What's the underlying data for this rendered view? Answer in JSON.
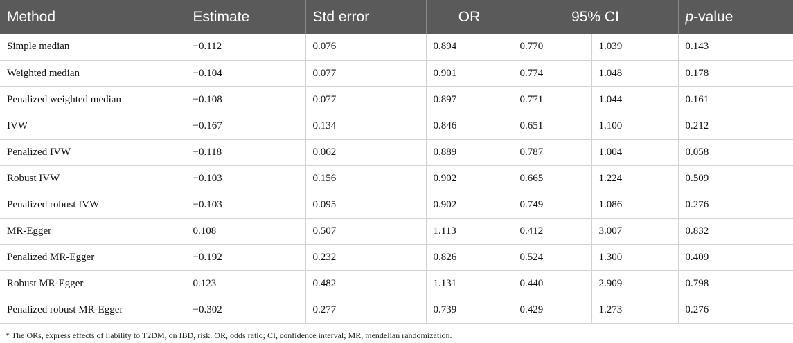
{
  "table": {
    "headers": {
      "method": "Method",
      "estimate": "Estimate",
      "std_error": "Std error",
      "or": "OR",
      "ci": "95% CI",
      "pvalue_italic": "p",
      "pvalue_rest": "-value"
    },
    "rows": [
      {
        "method": "Simple median",
        "estimate": "−0.112",
        "se": "0.076",
        "or": "0.894",
        "ci_low": "0.770",
        "ci_high": "1.039",
        "p": "0.143"
      },
      {
        "method": "Weighted median",
        "estimate": "−0.104",
        "se": "0.077",
        "or": "0.901",
        "ci_low": "0.774",
        "ci_high": "1.048",
        "p": "0.178"
      },
      {
        "method": "Penalized weighted median",
        "estimate": "−0.108",
        "se": "0.077",
        "or": "0.897",
        "ci_low": "0.771",
        "ci_high": "1.044",
        "p": "0.161"
      },
      {
        "method": "IVW",
        "estimate": "−0.167",
        "se": "0.134",
        "or": "0.846",
        "ci_low": "0.651",
        "ci_high": "1.100",
        "p": "0.212"
      },
      {
        "method": "Penalized IVW",
        "estimate": "−0.118",
        "se": "0.062",
        "or": "0.889",
        "ci_low": "0.787",
        "ci_high": "1.004",
        "p": "0.058"
      },
      {
        "method": "Robust IVW",
        "estimate": "−0.103",
        "se": "0.156",
        "or": "0.902",
        "ci_low": "0.665",
        "ci_high": "1.224",
        "p": "0.509"
      },
      {
        "method": "Penalized robust IVW",
        "estimate": "−0.103",
        "se": "0.095",
        "or": "0.902",
        "ci_low": "0.749",
        "ci_high": "1.086",
        "p": "0.276"
      },
      {
        "method": "MR-Egger",
        "estimate": "0.108",
        "se": "0.507",
        "or": "1.113",
        "ci_low": "0.412",
        "ci_high": "3.007",
        "p": "0.832"
      },
      {
        "method": "Penalized MR-Egger",
        "estimate": "−0.192",
        "se": "0.232",
        "or": "0.826",
        "ci_low": "0.524",
        "ci_high": "1.300",
        "p": "0.409"
      },
      {
        "method": "Robust MR-Egger",
        "estimate": "0.123",
        "se": "0.482",
        "or": "1.131",
        "ci_low": "0.440",
        "ci_high": "2.909",
        "p": "0.798"
      },
      {
        "method": "Penalized robust MR-Egger",
        "estimate": "−0.302",
        "se": "0.277",
        "or": "0.739",
        "ci_low": "0.429",
        "ci_high": "1.273",
        "p": "0.276"
      }
    ]
  },
  "footnote": "* The ORs, express effects of liability to T2DM, on IBD, risk. OR, odds ratio; CI, confidence interval; MR, mendelian randomization."
}
